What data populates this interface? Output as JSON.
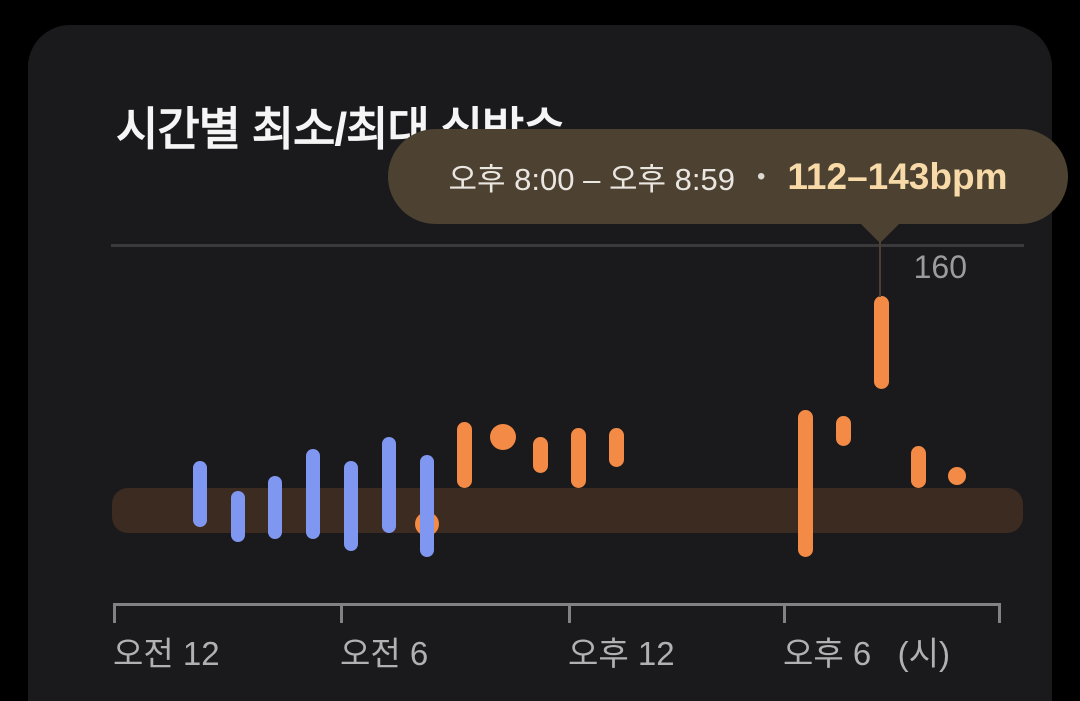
{
  "card": {
    "title": "시간별 최소/최대 심박수"
  },
  "tooltip": {
    "time_range": "오후 8:00 – 오후 8:59",
    "separator": "•",
    "value": "112–143bpm"
  },
  "y_axis": {
    "top_gridline_label": "160"
  },
  "x_axis": {
    "unit_label": "(시)"
  },
  "colors": {
    "background": "#000000",
    "card_background": "#1a1a1c",
    "title_text": "#f5f5f5",
    "tooltip_background": "#4d4231",
    "tooltip_time_text": "#eae6e1",
    "tooltip_value_text": "#f8d9a8",
    "blue_series": "#8097f2",
    "orange_series": "#f38a45",
    "resting_band": "#3c2b20",
    "top_gridline": "#3a3a3d",
    "y_label_text": "#9b9ba0",
    "axis_line": "#828286",
    "axis_label_text": "#b1b1b4"
  },
  "chart_data": {
    "type": "bar",
    "subtype": "hourly_min_max_range",
    "title": "시간별 최소/최대 심박수",
    "unit": "bpm",
    "x_axis_unit": "시",
    "x_tick_hours": [
      0,
      6,
      12,
      18,
      24
    ],
    "x_tick_labels": [
      "오전 12",
      "오전 6",
      "오후 12",
      "오후 6"
    ],
    "y_top_gridline": 160,
    "grid": "single top line at 160",
    "resting_band": {
      "min": 64,
      "max": 79
    },
    "selected": {
      "hour": 20,
      "time_range": "오후 8:00 – 오후 8:59",
      "min": 112,
      "max": 143,
      "value_label": "112–143bpm"
    },
    "series_colors": {
      "blue": "#8097f2",
      "orange": "#f38a45"
    },
    "bars": [
      {
        "hour": 2,
        "series": "blue",
        "shape": "bar",
        "min": 66,
        "max": 88
      },
      {
        "hour": 3,
        "series": "blue",
        "shape": "bar",
        "min": 61,
        "max": 78
      },
      {
        "hour": 4,
        "series": "blue",
        "shape": "bar",
        "min": 62,
        "max": 83
      },
      {
        "hour": 5,
        "series": "blue",
        "shape": "bar",
        "min": 62,
        "max": 92
      },
      {
        "hour": 6,
        "series": "blue",
        "shape": "bar",
        "min": 58,
        "max": 88
      },
      {
        "hour": 7,
        "series": "blue",
        "shape": "bar",
        "min": 64,
        "max": 96
      },
      {
        "hour": 8,
        "series": "orange",
        "shape": "dot",
        "min": 67,
        "max": 67,
        "dot_radius": 12
      },
      {
        "hour": 8,
        "series": "blue",
        "shape": "bar",
        "min": 56,
        "max": 90
      },
      {
        "hour": 9,
        "series": "orange",
        "shape": "bar",
        "min": 79,
        "max": 101
      },
      {
        "hour": 10,
        "series": "orange",
        "shape": "dot",
        "min": 96,
        "max": 96,
        "dot_radius": 13
      },
      {
        "hour": 11,
        "series": "orange",
        "shape": "bar",
        "min": 84,
        "max": 96
      },
      {
        "hour": 12,
        "series": "orange",
        "shape": "bar",
        "min": 79,
        "max": 99
      },
      {
        "hour": 13,
        "series": "orange",
        "shape": "bar",
        "min": 86,
        "max": 99
      },
      {
        "hour": 18,
        "series": "orange",
        "shape": "bar",
        "min": 56,
        "max": 105
      },
      {
        "hour": 19,
        "series": "orange",
        "shape": "bar",
        "min": 93,
        "max": 103
      },
      {
        "hour": 20,
        "series": "orange",
        "shape": "bar",
        "min": 112,
        "max": 143,
        "selected": true
      },
      {
        "hour": 21,
        "series": "orange",
        "shape": "bar",
        "min": 79,
        "max": 93
      },
      {
        "hour": 22,
        "series": "orange",
        "shape": "dot",
        "min": 83,
        "max": 83,
        "dot_radius": 9
      }
    ]
  }
}
